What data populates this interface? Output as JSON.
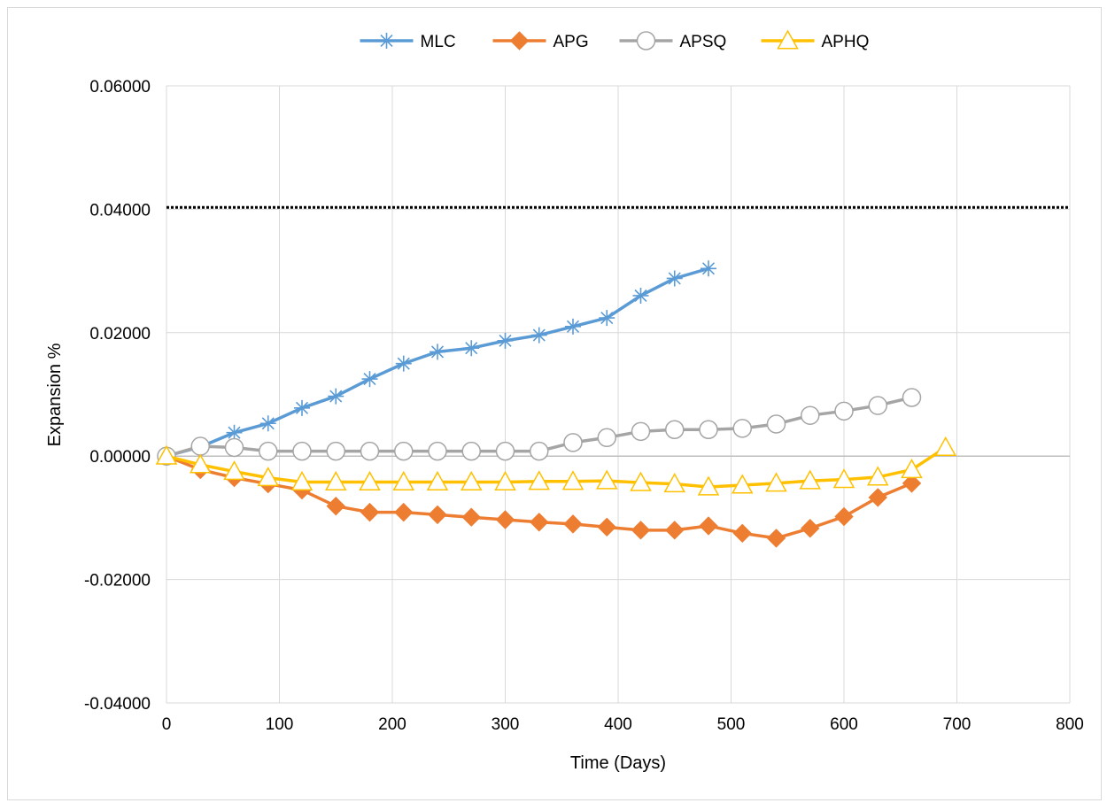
{
  "chart_data": {
    "type": "line",
    "title": "",
    "xlabel": "Time (Days)",
    "ylabel": "Expansion %",
    "xlim": [
      0,
      800
    ],
    "ylim": [
      -0.04,
      0.06
    ],
    "xticks": [
      0,
      100,
      200,
      300,
      400,
      500,
      600,
      700,
      800
    ],
    "yticks": [
      -0.04,
      -0.02,
      0.0,
      0.02,
      0.04,
      0.06
    ],
    "x_tick_labels": [
      "0",
      "100",
      "200",
      "300",
      "400",
      "500",
      "600",
      "700",
      "800"
    ],
    "y_tick_labels": [
      "-0.04000",
      "-0.02000",
      "0.00000",
      "0.02000",
      "0.04000",
      "0.06000"
    ],
    "grid": true,
    "legend_position": "top",
    "reference_line": {
      "y": 0.0403,
      "style": "dotted",
      "color": "#000000"
    },
    "series": [
      {
        "name": "MLC",
        "color": "#5b9bd5",
        "marker": "asterisk",
        "x": [
          0,
          30,
          60,
          90,
          120,
          150,
          180,
          210,
          240,
          270,
          300,
          330,
          360,
          390,
          420,
          450,
          480
        ],
        "values": [
          0.0,
          0.0015,
          0.0038,
          0.0053,
          0.0078,
          0.0097,
          0.0125,
          0.015,
          0.0169,
          0.0175,
          0.0187,
          0.0196,
          0.021,
          0.0224,
          0.026,
          0.0288,
          0.0304
        ]
      },
      {
        "name": "APG",
        "color": "#ed7d31",
        "marker": "diamond",
        "x": [
          0,
          30,
          60,
          90,
          120,
          150,
          180,
          210,
          240,
          270,
          300,
          330,
          360,
          390,
          420,
          450,
          480,
          510,
          540,
          570,
          600,
          630,
          660
        ],
        "values": [
          0.0,
          -0.0022,
          -0.0035,
          -0.0045,
          -0.0055,
          -0.0081,
          -0.0091,
          -0.0091,
          -0.0095,
          -0.0099,
          -0.0103,
          -0.0107,
          -0.011,
          -0.0115,
          -0.012,
          -0.012,
          -0.0113,
          -0.0125,
          -0.0133,
          -0.0117,
          -0.0098,
          -0.0067,
          -0.0044
        ]
      },
      {
        "name": "APSQ",
        "color": "#a5a5a5",
        "marker": "circle",
        "x": [
          0,
          30,
          60,
          90,
          120,
          150,
          180,
          210,
          240,
          270,
          300,
          330,
          360,
          390,
          420,
          450,
          480,
          510,
          540,
          570,
          600,
          630,
          660
        ],
        "values": [
          0.0,
          0.0016,
          0.0014,
          0.0008,
          0.0008,
          0.0008,
          0.0008,
          0.0008,
          0.0008,
          0.0008,
          0.0008,
          0.0008,
          0.0022,
          0.003,
          0.004,
          0.0043,
          0.0043,
          0.0045,
          0.0052,
          0.0066,
          0.0073,
          0.0082,
          0.0095
        ]
      },
      {
        "name": "APHQ",
        "color": "#ffc000",
        "marker": "triangle",
        "x": [
          0,
          30,
          60,
          90,
          120,
          150,
          180,
          210,
          240,
          270,
          300,
          330,
          360,
          390,
          420,
          450,
          480,
          510,
          540,
          570,
          600,
          630,
          660,
          690
        ],
        "values": [
          0.0,
          -0.0014,
          -0.0025,
          -0.0035,
          -0.0042,
          -0.0042,
          -0.0042,
          -0.0042,
          -0.0042,
          -0.0042,
          -0.0042,
          -0.0041,
          -0.0041,
          -0.004,
          -0.0043,
          -0.0045,
          -0.005,
          -0.0047,
          -0.0044,
          -0.004,
          -0.0038,
          -0.0034,
          -0.0022,
          0.0014
        ]
      }
    ]
  }
}
